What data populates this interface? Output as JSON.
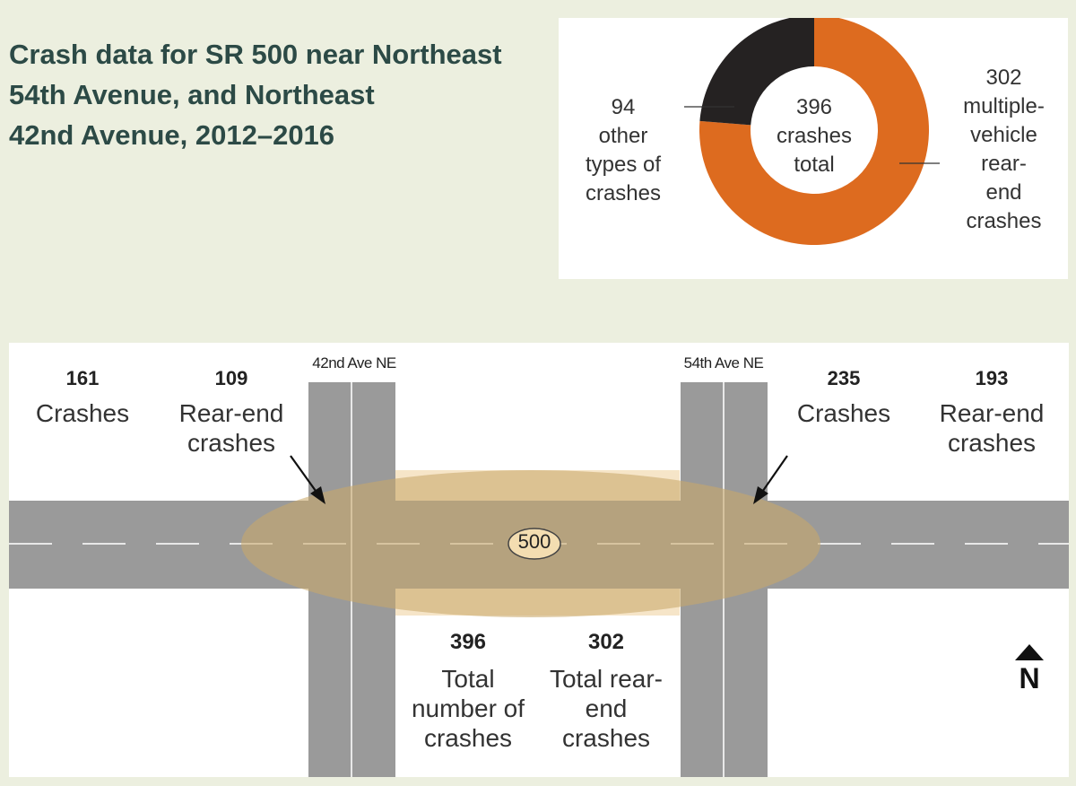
{
  "title": {
    "lines": [
      "Crash data for SR 500 near Northeast",
      "54th Avenue, and Northeast",
      "42nd Avenue, 2012–2016"
    ]
  },
  "donut": {
    "total_value": "396",
    "total_text": [
      "crashes",
      "total"
    ],
    "segments": [
      {
        "value": 302,
        "label_lines": [
          "302",
          "multiple-",
          "vehicle",
          "rear-",
          "end",
          "crashes"
        ],
        "color": "#dd6b1f"
      },
      {
        "value": 94,
        "label_lines": [
          "94",
          "other",
          "types of",
          "crashes"
        ],
        "color": "#252222"
      }
    ]
  },
  "map": {
    "west": {
      "crashes": {
        "value": "161",
        "lines": [
          "Crashes"
        ]
      },
      "rear_end": {
        "value": "109",
        "lines": [
          "Rear-end",
          "crashes"
        ]
      }
    },
    "east": {
      "crashes": {
        "value": "235",
        "lines": [
          "Crashes"
        ]
      },
      "rear_end": {
        "value": "193",
        "lines": [
          "Rear-end",
          "crashes"
        ]
      }
    },
    "streets": {
      "left": "42nd Ave NE",
      "right": "54th Ave NE"
    },
    "shield": "500",
    "total": {
      "value": "396",
      "lines": [
        "Total",
        "number of",
        "crashes"
      ]
    },
    "total_rear_end": {
      "value": "302",
      "lines": [
        "Total rear-",
        "end",
        "crashes"
      ]
    },
    "north": "N",
    "colors": {
      "road": "#9a9a9a",
      "highlight": "#c9a96a",
      "highlight_light": "#f6e5c8"
    }
  }
}
